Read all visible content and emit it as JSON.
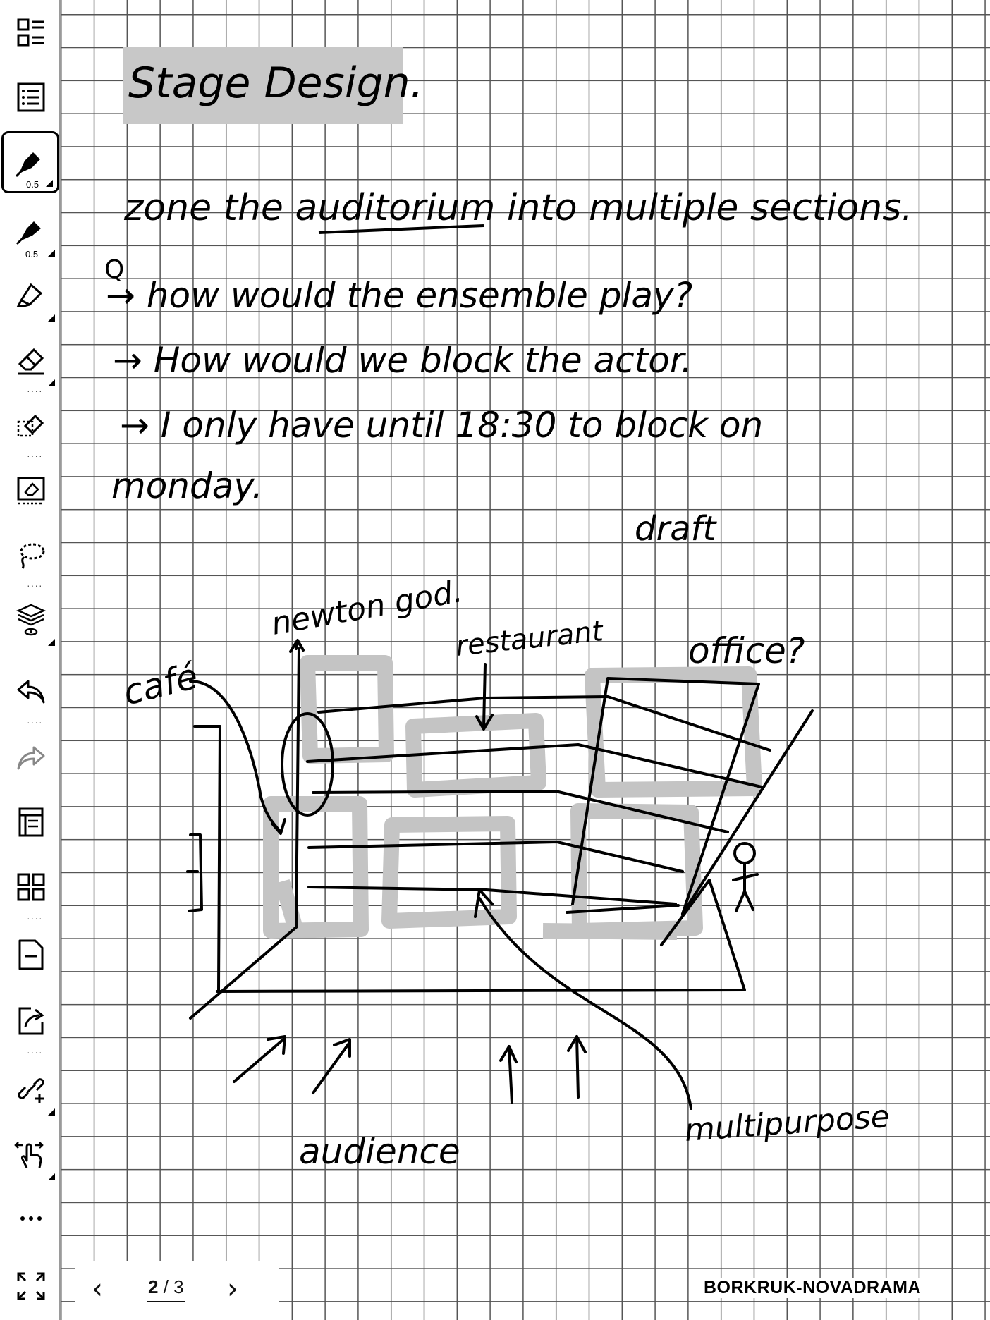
{
  "toolbar": {
    "tools": [
      {
        "name": "toc-icon"
      },
      {
        "name": "notes-list-icon"
      },
      {
        "name": "fountain-pen-icon",
        "size_label": "0.5",
        "active": true
      },
      {
        "name": "ballpoint-pen-icon",
        "size_label": "0.5"
      },
      {
        "name": "marker-icon"
      },
      {
        "name": "eraser-icon"
      },
      {
        "name": "area-eraser-icon"
      },
      {
        "name": "clear-page-icon"
      },
      {
        "name": "lasso-icon"
      },
      {
        "name": "layers-icon"
      },
      {
        "name": "undo-icon"
      },
      {
        "name": "redo-icon"
      },
      {
        "name": "template-icon"
      },
      {
        "name": "pages-grid-icon"
      },
      {
        "name": "delete-page-icon"
      },
      {
        "name": "export-icon"
      },
      {
        "name": "link-icon"
      },
      {
        "name": "touch-gesture-icon"
      },
      {
        "name": "more-icon"
      },
      {
        "name": "fullscreen-icon"
      }
    ]
  },
  "note": {
    "title": "Stage Design.",
    "lines": [
      "zone the auditorium into multiple sections.",
      "Q",
      "→ how would the ensemble play?",
      "→ How would we block the actor.",
      "→ I only have until 18:30 to block on",
      "monday."
    ],
    "sketch_labels": {
      "draft": "draft",
      "newton": "newton god.",
      "cafe": "café",
      "restaurant": "restaurant",
      "office": "office?",
      "audience": "audience",
      "multipurpose": "multipurpose"
    }
  },
  "footer": {
    "prev_label": "‹",
    "next_label": "›",
    "current_page": "2",
    "page_separator": "/",
    "total_pages": "3",
    "notebook_name": "BORKRUK-NOVADRAMA"
  }
}
